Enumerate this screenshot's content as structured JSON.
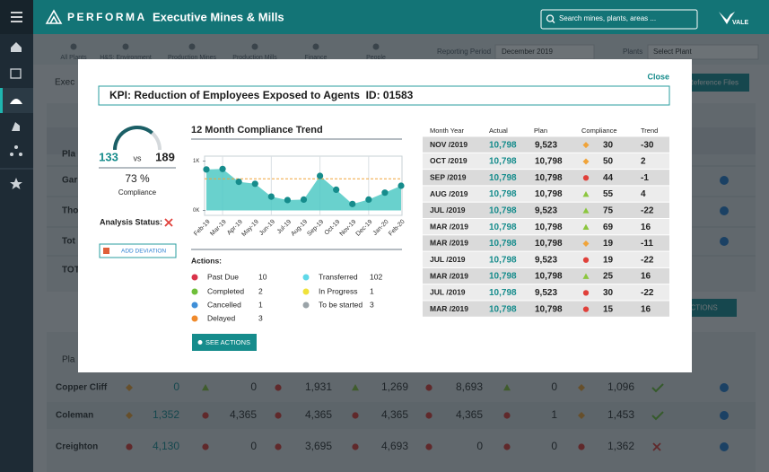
{
  "header": {
    "brand": "PERFORMA",
    "title": "Executive Mines & Mills",
    "search_placeholder": "Search mines, plants, areas ...",
    "logo": "VALE"
  },
  "background": {
    "tabs": [
      "All Plants",
      "H&S: Environment",
      "Production Mines",
      "Production Mills",
      "Finance",
      "People"
    ],
    "reporting_period_label": "Reporting Period",
    "reporting_period": "December 2019",
    "plants_label": "Plants",
    "plants_select": "Select Plant",
    "section_fragment": "Exec",
    "reference_button": "Reference Files",
    "row_fragments": [
      "Pla",
      "Gar",
      "Tho",
      "Tot",
      "TOT"
    ],
    "actions_button": "SEE ACTIONS",
    "lower_header_fragment": "Pla",
    "status_styles": {
      "diamond": "#f0a43a",
      "triangle": "#8cc63f",
      "circle": "#e0403a"
    },
    "rows": [
      {
        "name": "Copper Cliff",
        "end": "check",
        "cells": [
          {
            "status": "diamond",
            "value": "0"
          },
          {
            "status": "triangle",
            "value": "0"
          },
          {
            "status": "circle",
            "value": "1,931"
          },
          {
            "status": "triangle",
            "value": "1,269"
          },
          {
            "status": "circle",
            "value": "8,693"
          },
          {
            "status": "triangle",
            "value": "0"
          },
          {
            "status": "diamond",
            "value": "1,096"
          }
        ]
      },
      {
        "name": "Coleman",
        "end": "check",
        "cells": [
          {
            "status": "diamond",
            "value": "1,352"
          },
          {
            "status": "circle",
            "value": "4,365"
          },
          {
            "status": "circle",
            "value": "4,365"
          },
          {
            "status": "circle",
            "value": "4,365"
          },
          {
            "status": "circle",
            "value": "4,365"
          },
          {
            "status": "circle",
            "value": "1"
          },
          {
            "status": "diamond",
            "value": "1,453"
          }
        ]
      },
      {
        "name": "Creighton",
        "end": "cross",
        "cells": [
          {
            "status": "circle",
            "value": "4,130"
          },
          {
            "status": "circle",
            "value": "0"
          },
          {
            "status": "circle",
            "value": "3,695"
          },
          {
            "status": "circle",
            "value": "4,693"
          },
          {
            "status": "circle",
            "value": "0"
          },
          {
            "status": "circle",
            "value": "0"
          },
          {
            "status": "circle",
            "value": "1,362"
          }
        ]
      }
    ]
  },
  "modal": {
    "close": "Close",
    "kpi_title": "KPI: Reduction of Employees Exposed to Agents  ID: 01583",
    "gauge": {
      "actual": "133",
      "vs": "vs",
      "plan": "189",
      "value": 73,
      "value_label": "73 %",
      "caption": "Compliance",
      "color": "#1b5f66"
    },
    "analysis_status": "Analysis Status:",
    "add_deviation": "ADD DEVIATION",
    "actions_title": "Actions:",
    "actions": [
      {
        "name": "Past Due",
        "count": "10",
        "color": "#d9334a"
      },
      {
        "name": "Completed",
        "count": "2",
        "color": "#6fbf3a"
      },
      {
        "name": "Cancelled",
        "count": "1",
        "color": "#3f8fd8"
      },
      {
        "name": "Delayed",
        "count": "3",
        "color": "#f08a2c"
      },
      {
        "name": "Transferred",
        "count": "102",
        "color": "#5fd8e8"
      },
      {
        "name": "In Progress",
        "count": "1",
        "color": "#f0e23a"
      },
      {
        "name": "To be started",
        "count": "3",
        "color": "#9aa3a8"
      }
    ],
    "see_actions": "SEE ACTIONS"
  },
  "chart_data": {
    "type": "area",
    "title": "12 Month Compliance Trend",
    "categories": [
      "Feb-19",
      "Mar-19",
      "Apr-19",
      "May-19",
      "Jun-19",
      "Jul-19",
      "Aug-19",
      "Sep-19",
      "Oct-19",
      "Nov-19",
      "Dec-19",
      "Jan-20",
      "Feb-20"
    ],
    "values": [
      830,
      840,
      580,
      540,
      280,
      210,
      220,
      700,
      420,
      130,
      220,
      360,
      500
    ],
    "reference_line": 640,
    "color": "#4fc9c4",
    "marker_color": "#168c8c",
    "reference_color": "#f0a43a",
    "ylim": [
      -100,
      1100
    ],
    "yticks": [
      {
        "value": 0,
        "label": "0K"
      },
      {
        "value": 1000,
        "label": "1K"
      }
    ],
    "grid": true
  },
  "table": {
    "columns": [
      "Month Year",
      "Actual",
      "Plan",
      "Compliance",
      "Trend"
    ],
    "rows": [
      {
        "month": "NOV /2019",
        "actual": "10,798",
        "plan": "9,523",
        "status": "diamond",
        "compliance": "30",
        "trend": "-30"
      },
      {
        "month": "OCT /2019",
        "actual": "10,798",
        "plan": "10,798",
        "status": "diamond",
        "compliance": "50",
        "trend": "2"
      },
      {
        "month": "SEP /2019",
        "actual": "10,798",
        "plan": "10,798",
        "status": "circle",
        "compliance": "44",
        "trend": "-1"
      },
      {
        "month": "AUG /2019",
        "actual": "10,798",
        "plan": "10,798",
        "status": "triangle",
        "compliance": "55",
        "trend": "4"
      },
      {
        "month": "JUL /2019",
        "actual": "10,798",
        "plan": "9,523",
        "status": "triangle",
        "compliance": "75",
        "trend": "-22"
      },
      {
        "month": "MAR /2019",
        "actual": "10,798",
        "plan": "10,798",
        "status": "triangle",
        "compliance": "69",
        "trend": "16"
      },
      {
        "month": "MAR /2019",
        "actual": "10,798",
        "plan": "10,798",
        "status": "diamond",
        "compliance": "19",
        "trend": "-11"
      },
      {
        "month": "JUL /2019",
        "actual": "10,798",
        "plan": "9,523",
        "status": "circle",
        "compliance": "19",
        "trend": "-22"
      },
      {
        "month": "MAR /2019",
        "actual": "10,798",
        "plan": "10,798",
        "status": "triangle",
        "compliance": "25",
        "trend": "16"
      },
      {
        "month": "JUL /2019",
        "actual": "10,798",
        "plan": "9,523",
        "status": "circle",
        "compliance": "30",
        "trend": "-22"
      },
      {
        "month": "MAR /2019",
        "actual": "10,798",
        "plan": "10,798",
        "status": "circle",
        "compliance": "15",
        "trend": "16"
      }
    ]
  }
}
